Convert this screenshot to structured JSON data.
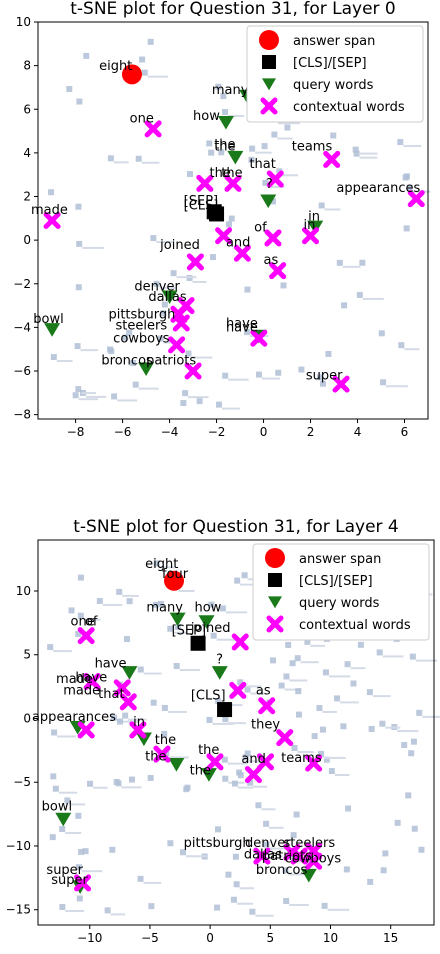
{
  "colors": {
    "answer": "#ff0000",
    "cls": "#000000",
    "query": "#1a7a1a",
    "context": "#ff00ff",
    "background": "#b0bfd6"
  },
  "chart_data": [
    {
      "type": "scatter",
      "title": "t-SNE plot for Question 31, for Layer 0",
      "xlim": [
        -9.6,
        7.0
      ],
      "ylim": [
        -8.2,
        10.0
      ],
      "xticks": [
        -8,
        -6,
        -4,
        -2,
        0,
        2,
        4,
        6
      ],
      "yticks": [
        -8,
        -6,
        -4,
        -2,
        0,
        2,
        4,
        6,
        8,
        10
      ],
      "legend": {
        "position": "top-right",
        "entries": [
          "answer span",
          "[CLS]/[SEP]",
          "query words",
          "contextual words"
        ]
      },
      "series": [
        {
          "name": "answer span",
          "marker": "circle",
          "points": [
            {
              "x": -5.6,
              "y": 7.6,
              "label": "eight"
            }
          ]
        },
        {
          "name": "[CLS]/[SEP]",
          "marker": "square",
          "points": [
            {
              "x": -2.0,
              "y": 1.2,
              "label": "[SEP]"
            },
            {
              "x": -2.1,
              "y": 1.3,
              "label": "[CLS]"
            }
          ]
        },
        {
          "name": "query words",
          "marker": "triangle",
          "points": [
            {
              "x": -1.6,
              "y": 5.4,
              "label": "how"
            },
            {
              "x": -0.7,
              "y": 6.6,
              "label": "many"
            },
            {
              "x": -1.2,
              "y": 3.8,
              "label": "the"
            },
            {
              "x": 0.2,
              "y": 1.8,
              "label": "?"
            },
            {
              "x": 2.2,
              "y": 0.6,
              "label": "in"
            },
            {
              "x": -4.0,
              "y": -2.6,
              "label": "dallas"
            },
            {
              "x": -9.0,
              "y": -4.1,
              "label": "bowl"
            },
            {
              "x": -5.0,
              "y": -5.9,
              "label": "broncos"
            },
            {
              "x": -0.2,
              "y": -4.4,
              "label": "have"
            }
          ]
        },
        {
          "name": "contextual words",
          "marker": "x",
          "points": [
            {
              "x": -4.7,
              "y": 5.1,
              "label": "one"
            },
            {
              "x": -9.0,
              "y": 0.9,
              "label": "made"
            },
            {
              "x": -2.5,
              "y": 2.6,
              "label": "the"
            },
            {
              "x": -1.3,
              "y": 2.6,
              "label": "the"
            },
            {
              "x": 0.5,
              "y": 2.8,
              "label": "that"
            },
            {
              "x": 2.9,
              "y": 3.7,
              "label": "teams"
            },
            {
              "x": 6.5,
              "y": 1.9,
              "label": "appearances"
            },
            {
              "x": 2.0,
              "y": 0.2,
              "label": "in"
            },
            {
              "x": 0.4,
              "y": 0.1,
              "label": "of"
            },
            {
              "x": -1.7,
              "y": 0.2,
              "label": "joined"
            },
            {
              "x": -0.9,
              "y": -0.6,
              "label": "and"
            },
            {
              "x": 0.6,
              "y": -1.4,
              "label": "as"
            },
            {
              "x": -2.9,
              "y": -1.0,
              "label": "joined"
            },
            {
              "x": -3.3,
              "y": -3.0,
              "label": "denver"
            },
            {
              "x": -3.6,
              "y": -3.4,
              "label": "pittsburgh"
            },
            {
              "x": -3.5,
              "y": -3.8,
              "label": "steelers"
            },
            {
              "x": -3.7,
              "y": -4.8,
              "label": "cowboys"
            },
            {
              "x": -3.0,
              "y": -6.0,
              "label": "patriots"
            },
            {
              "x": -0.2,
              "y": -4.5,
              "label": "have"
            },
            {
              "x": 3.3,
              "y": -6.6,
              "label": "super"
            }
          ]
        }
      ],
      "annotations": [
        {
          "text": "eight",
          "x": -7.0,
          "y": 7.8
        },
        {
          "text": "many",
          "x": -2.2,
          "y": 6.7
        },
        {
          "text": "how",
          "x": -3.0,
          "y": 5.5
        },
        {
          "text": "one",
          "x": -5.7,
          "y": 5.4
        },
        {
          "text": "the",
          "x": -2.1,
          "y": 4.2
        },
        {
          "text": "the",
          "x": -2.1,
          "y": 4.1
        },
        {
          "text": "the",
          "x": -2.3,
          "y": 2.9
        },
        {
          "text": "the",
          "x": -1.8,
          "y": 2.9
        },
        {
          "text": "that",
          "x": -0.6,
          "y": 3.3
        },
        {
          "text": "teams",
          "x": 1.2,
          "y": 4.1
        },
        {
          "text": "?",
          "x": 0.1,
          "y": 2.4
        },
        {
          "text": "appearances",
          "x": 3.1,
          "y": 2.2
        },
        {
          "text": "[SEP]",
          "x": -3.4,
          "y": 1.6
        },
        {
          "text": "[CLS]",
          "x": -3.4,
          "y": 1.4
        },
        {
          "text": "made",
          "x": -9.9,
          "y": 1.2
        },
        {
          "text": "in",
          "x": 1.9,
          "y": 0.9
        },
        {
          "text": "in",
          "x": 1.7,
          "y": 0.5
        },
        {
          "text": "of",
          "x": -0.4,
          "y": 0.4
        },
        {
          "text": "joined",
          "x": -4.4,
          "y": -0.4
        },
        {
          "text": "and",
          "x": -1.6,
          "y": -0.3
        },
        {
          "text": "as",
          "x": 0.0,
          "y": -1.1
        },
        {
          "text": "denver",
          "x": -5.5,
          "y": -2.3
        },
        {
          "text": "dallas",
          "x": -4.9,
          "y": -2.8
        },
        {
          "text": "pittsburgh",
          "x": -6.6,
          "y": -3.6
        },
        {
          "text": "steelers",
          "x": -6.3,
          "y": -4.1
        },
        {
          "text": "have",
          "x": -1.6,
          "y": -4.2
        },
        {
          "text": "have",
          "x": -1.6,
          "y": -4.0
        },
        {
          "text": "cowboys",
          "x": -6.4,
          "y": -4.7
        },
        {
          "text": "bowl",
          "x": -9.8,
          "y": -3.8
        },
        {
          "text": "broncos",
          "x": -6.9,
          "y": -5.7
        },
        {
          "text": "patriots",
          "x": -5.0,
          "y": -5.7
        },
        {
          "text": "super",
          "x": 1.8,
          "y": -6.4
        }
      ]
    },
    {
      "type": "scatter",
      "title": "t-SNE plot for Question 31, for Layer 4",
      "xlim": [
        -14.3,
        18.6
      ],
      "ylim": [
        -16.2,
        14.0
      ],
      "xticks": [
        -10,
        -5,
        0,
        5,
        10,
        15
      ],
      "yticks": [
        -15,
        -10,
        -5,
        0,
        5,
        10
      ],
      "legend": {
        "position": "top-right",
        "entries": [
          "answer span",
          "[CLS]/[SEP]",
          "query words",
          "contextual words"
        ]
      },
      "series": [
        {
          "name": "answer span",
          "marker": "circle",
          "points": [
            {
              "x": -3.0,
              "y": 10.8,
              "label": "four"
            }
          ]
        },
        {
          "name": "[CLS]/[SEP]",
          "marker": "square",
          "points": [
            {
              "x": -1.0,
              "y": 5.9,
              "label": "[SEP]"
            },
            {
              "x": 1.2,
              "y": 0.7,
              "label": "[CLS]"
            }
          ]
        },
        {
          "name": "query words",
          "marker": "triangle",
          "points": [
            {
              "x": -2.7,
              "y": 7.8,
              "label": "many"
            },
            {
              "x": -0.3,
              "y": 7.6,
              "label": "how"
            },
            {
              "x": 0.8,
              "y": 3.6,
              "label": "?"
            },
            {
              "x": -6.7,
              "y": 3.6,
              "label": "have"
            },
            {
              "x": -5.5,
              "y": -1.6,
              "label": "in"
            },
            {
              "x": -11.0,
              "y": -0.7,
              "label": "appearances"
            },
            {
              "x": -2.8,
              "y": -3.6,
              "label": "the"
            },
            {
              "x": -0.1,
              "y": -4.4,
              "label": "the"
            },
            {
              "x": -12.2,
              "y": -7.9,
              "label": "bowl"
            },
            {
              "x": -10.8,
              "y": -13.2,
              "label": "super"
            },
            {
              "x": 8.2,
              "y": -12.3,
              "label": "broncos"
            }
          ]
        },
        {
          "name": "contextual words",
          "marker": "x",
          "points": [
            {
              "x": -10.3,
              "y": 6.5,
              "label": "one"
            },
            {
              "x": -9.8,
              "y": 2.9,
              "label": "made"
            },
            {
              "x": -7.3,
              "y": 2.4,
              "label": "that"
            },
            {
              "x": -6.8,
              "y": 1.3,
              "label": "have"
            },
            {
              "x": 2.5,
              "y": 6.0,
              "label": "joined"
            },
            {
              "x": 2.3,
              "y": 2.2,
              "label": "as"
            },
            {
              "x": 4.7,
              "y": 1.0,
              "label": "as"
            },
            {
              "x": -6.0,
              "y": -0.9,
              "label": "in"
            },
            {
              "x": -10.3,
              "y": -0.9,
              "label": "appearances"
            },
            {
              "x": -4.0,
              "y": -2.8,
              "label": "the"
            },
            {
              "x": 0.4,
              "y": -3.4,
              "label": "the"
            },
            {
              "x": 3.6,
              "y": -4.4,
              "label": "and"
            },
            {
              "x": 6.2,
              "y": -1.5,
              "label": "they"
            },
            {
              "x": 8.6,
              "y": -3.5,
              "label": "teams"
            },
            {
              "x": 4.6,
              "y": -3.4,
              "label": "and"
            },
            {
              "x": 4.3,
              "y": -10.8,
              "label": "pittsburgh"
            },
            {
              "x": 6.8,
              "y": -10.5,
              "label": "denver"
            },
            {
              "x": 7.4,
              "y": -10.8,
              "label": "dallas"
            },
            {
              "x": 8.6,
              "y": -10.4,
              "label": "steelers"
            },
            {
              "x": 8.6,
              "y": -11.2,
              "label": "cowboys"
            },
            {
              "x": -10.6,
              "y": -12.9,
              "label": "super"
            }
          ]
        }
      ],
      "annotations": [
        {
          "text": "eight",
          "x": -5.4,
          "y": 11.8
        },
        {
          "text": "four",
          "x": -4.0,
          "y": 11.0
        },
        {
          "text": "many",
          "x": -5.3,
          "y": 8.4
        },
        {
          "text": "how",
          "x": -1.3,
          "y": 8.4
        },
        {
          "text": "one",
          "x": -11.6,
          "y": 7.3
        },
        {
          "text": "of",
          "x": -10.4,
          "y": 7.3
        },
        {
          "text": "[SEP]",
          "x": -3.2,
          "y": 6.6
        },
        {
          "text": "joined",
          "x": -1.6,
          "y": 6.8
        },
        {
          "text": "have",
          "x": -9.6,
          "y": 4.0
        },
        {
          "text": "made",
          "x": -12.8,
          "y": 2.8
        },
        {
          "text": "have",
          "x": -11.2,
          "y": 2.9
        },
        {
          "text": "made",
          "x": -12.2,
          "y": 1.9
        },
        {
          "text": "that",
          "x": -9.3,
          "y": 1.6
        },
        {
          "text": "?",
          "x": 0.5,
          "y": 4.3
        },
        {
          "text": "[CLS]",
          "x": -1.6,
          "y": 1.5
        },
        {
          "text": "as",
          "x": 3.8,
          "y": 1.9
        },
        {
          "text": "appearances",
          "x": -14.8,
          "y": -0.2
        },
        {
          "text": "in",
          "x": -6.4,
          "y": -0.6
        },
        {
          "text": "the",
          "x": -4.6,
          "y": -2.0
        },
        {
          "text": "they",
          "x": 3.4,
          "y": -0.8
        },
        {
          "text": "the",
          "x": -1.0,
          "y": -2.8
        },
        {
          "text": "the",
          "x": -5.4,
          "y": -3.3
        },
        {
          "text": "and",
          "x": 2.6,
          "y": -3.5
        },
        {
          "text": "teams",
          "x": 5.9,
          "y": -3.4
        },
        {
          "text": "the",
          "x": -1.7,
          "y": -4.4
        },
        {
          "text": "bowl",
          "x": -14.0,
          "y": -7.2
        },
        {
          "text": "pittsburgh",
          "x": -2.2,
          "y": -10.1
        },
        {
          "text": "denver",
          "x": 2.9,
          "y": -10.1
        },
        {
          "text": "steelers",
          "x": 6.1,
          "y": -10.1
        },
        {
          "text": "dallas",
          "x": 2.8,
          "y": -11.0
        },
        {
          "text": "patriots",
          "x": 4.3,
          "y": -11.1
        },
        {
          "text": "cowboys",
          "x": 6.2,
          "y": -11.3
        },
        {
          "text": "broncos",
          "x": 3.8,
          "y": -12.2
        },
        {
          "text": "super",
          "x": -13.6,
          "y": -12.2
        },
        {
          "text": "super",
          "x": -13.2,
          "y": -13.0
        }
      ]
    }
  ]
}
